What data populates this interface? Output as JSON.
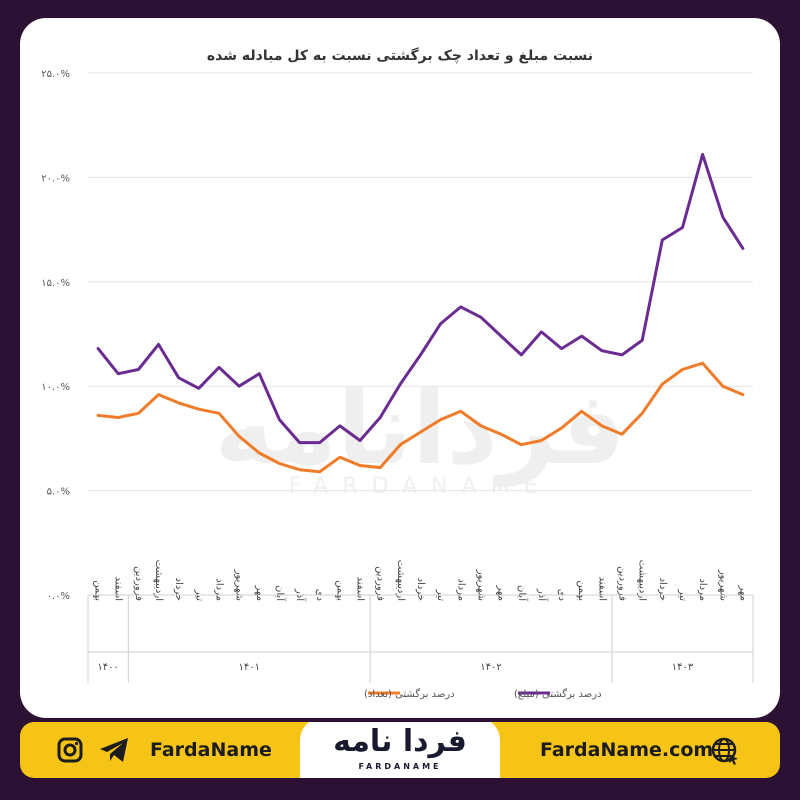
{
  "chart_data": {
    "type": "line",
    "title": "نسبت مبلغ و تعداد چک برگشتی نسبت به کل مبادله شده",
    "ylim": [
      0,
      25
    ],
    "yticks": [
      "۰.۰%",
      "۵.۰%",
      "۱۰.۰%",
      "۱۵.۰%",
      "۲۰.۰%",
      "۲۵.۰%"
    ],
    "ytick_values": [
      0,
      5,
      10,
      15,
      20,
      25
    ],
    "grid": true,
    "legend_position": "bottom",
    "categories": [
      "بهمن",
      "اسفند",
      "فروردین",
      "اردیبهشت",
      "خرداد",
      "تیر",
      "مرداد",
      "شهریور",
      "مهر",
      "آبان",
      "آذر",
      "دی",
      "بهمن",
      "اسفند",
      "فروردین",
      "اردیبهشت",
      "خرداد",
      "تیر",
      "مرداد",
      "شهریور",
      "مهر",
      "آبان",
      "آذر",
      "دی",
      "بهمن",
      "اسفند",
      "فروردین",
      "اردیبهشت",
      "خرداد",
      "تیر",
      "مرداد",
      "شهریور",
      "مهر"
    ],
    "year_groups": [
      {
        "label": "۱۴۰۰",
        "start": 0,
        "count": 2
      },
      {
        "label": "۱۴۰۱",
        "start": 2,
        "count": 12
      },
      {
        "label": "۱۴۰۲",
        "start": 14,
        "count": 12
      },
      {
        "label": "۱۴۰۳",
        "start": 26,
        "count": 7
      }
    ],
    "series": [
      {
        "name": "درصد برگشتی (مبلغ)",
        "color": "#6b2c91",
        "values": [
          11.8,
          10.6,
          10.8,
          12.0,
          10.4,
          9.9,
          10.9,
          10.0,
          10.6,
          8.4,
          7.3,
          7.3,
          8.1,
          7.4,
          8.5,
          10.1,
          11.5,
          13.0,
          13.8,
          13.3,
          12.4,
          11.5,
          12.6,
          11.8,
          12.4,
          11.7,
          11.5,
          12.2,
          17.0,
          17.6,
          21.1,
          18.1,
          16.6
        ]
      },
      {
        "name": "درصد برگشتی (تعداد)",
        "color": "#f07c2a",
        "values": [
          8.6,
          8.5,
          8.7,
          9.6,
          9.2,
          8.9,
          8.7,
          7.6,
          6.8,
          6.3,
          6.0,
          5.9,
          6.6,
          6.2,
          6.1,
          7.2,
          7.8,
          8.4,
          8.8,
          8.1,
          7.7,
          7.2,
          7.4,
          8.0,
          8.8,
          8.1,
          7.7,
          8.7,
          10.1,
          10.8,
          11.1,
          10.0,
          9.6
        ]
      }
    ]
  },
  "watermark": {
    "logo": "فردانامه",
    "sub": "FARDANAME"
  },
  "footer": {
    "handle": "FardaName",
    "site": "FardaName.com",
    "logo_text": "فردا نامه",
    "logo_sub": "FARDANAME"
  },
  "icons": {
    "instagram": "instagram-icon",
    "telegram": "telegram-icon",
    "web": "globe-icon"
  }
}
